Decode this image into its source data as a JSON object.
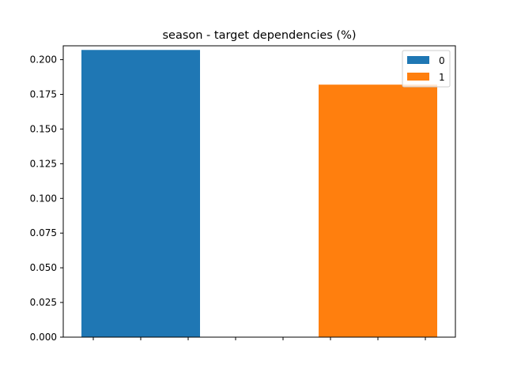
{
  "chart_data": {
    "type": "bar",
    "title": "season - target dependencies (%)",
    "xlabel": "",
    "ylabel": "",
    "ylim": [
      0,
      0.21
    ],
    "yticks": [
      0.0,
      0.025,
      0.05,
      0.075,
      0.1,
      0.125,
      0.15,
      0.175,
      0.2
    ],
    "ytick_labels": [
      "0.000",
      "0.025",
      "0.050",
      "0.075",
      "0.100",
      "0.125",
      "0.150",
      "0.175",
      "0.200"
    ],
    "xticks_count": 8,
    "grid": false,
    "legend_position": "top-right",
    "series": [
      {
        "name": "0",
        "value": 0.207,
        "color": "#1f77b4"
      },
      {
        "name": "1",
        "value": 0.182,
        "color": "#ff7f0e"
      }
    ]
  }
}
